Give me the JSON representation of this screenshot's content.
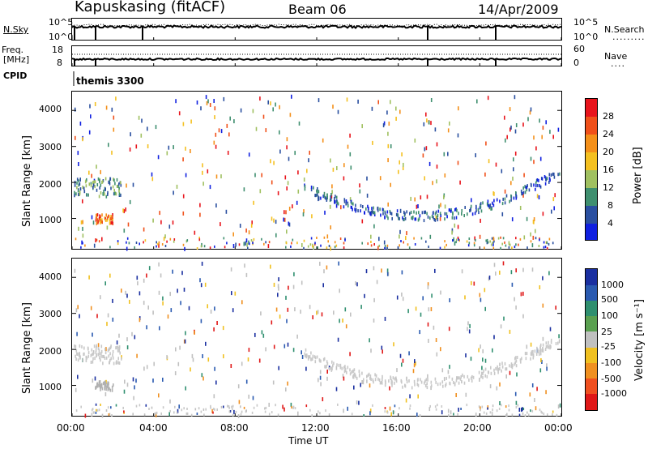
{
  "header": {
    "station": "Kapuskasing (fitACF)",
    "beam": "Beam 06",
    "date": "14/Apr/2009"
  },
  "top_panels": {
    "nsky_label": "N.Sky",
    "nsearch_label": "N.Search",
    "freq_label": "Freq.",
    "freq_unit": "[MHz]",
    "nave_label": "Nave",
    "cpid_label": "CPID",
    "cpid_value": "themis 3300",
    "nsky_ticks": [
      "10^5",
      "10^0"
    ],
    "nsearch_ticks": [
      "10^5",
      "10^0"
    ],
    "freq_ticks": [
      "18",
      "8"
    ],
    "nave_ticks": [
      "60",
      "0"
    ]
  },
  "chart_data": [
    {
      "type": "heatmap",
      "name": "power",
      "ylabel": "Slant Range [km]",
      "xlabel": "Time UT",
      "ylim": [
        180,
        4500
      ],
      "yticks": [
        "4000",
        "3000",
        "2000",
        "1000"
      ],
      "xticks": [
        "00:00",
        "04:00",
        "08:00",
        "12:00",
        "16:00",
        "20:00",
        "00:00"
      ],
      "colorbar": {
        "label": "Power [dB]",
        "ticks": [
          "28",
          "24",
          "20",
          "16",
          "12",
          "8",
          "4"
        ],
        "colors": [
          "#e8141c",
          "#f0501a",
          "#f4901a",
          "#f4c020",
          "#a0c060",
          "#3f8f6f",
          "#2a4fa0",
          "#1020e0"
        ]
      }
    },
    {
      "type": "heatmap",
      "name": "velocity",
      "ylabel": "Slant Range [km]",
      "xlabel": "Time UT",
      "ylim": [
        180,
        4500
      ],
      "yticks": [
        "4000",
        "3000",
        "2000",
        "1000"
      ],
      "xticks": [
        "00:00",
        "04:00",
        "08:00",
        "12:00",
        "16:00",
        "20:00",
        "00:00"
      ],
      "colorbar": {
        "label": "Velocity [m s⁻¹]",
        "ticks": [
          "1000",
          "500",
          "100",
          "25",
          "-25",
          "-100",
          "-500",
          "-1000"
        ],
        "colors": [
          "#1a2fa0",
          "#2a5ab0",
          "#2f8f6f",
          "#5aa050",
          "#c0c0c0",
          "#f0c020",
          "#f09020",
          "#f05020",
          "#e01818"
        ]
      }
    }
  ],
  "footer": {
    "time_label": "Time UT",
    "x_ticks": [
      "00:00",
      "04:00",
      "08:00",
      "12:00",
      "16:00",
      "20:00",
      "00:00"
    ]
  }
}
